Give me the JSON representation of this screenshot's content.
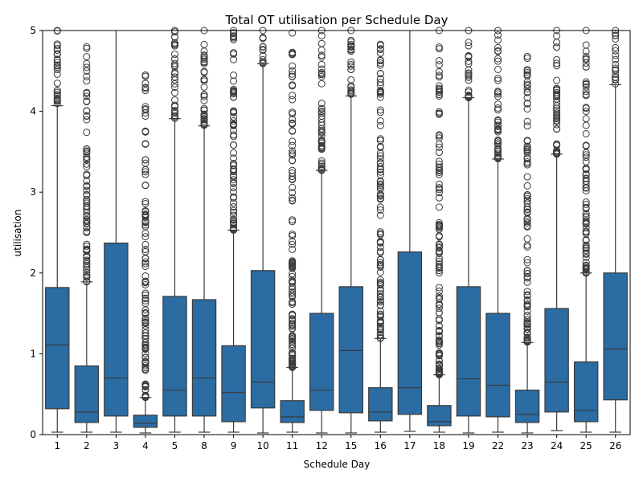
{
  "chart_data": {
    "type": "box",
    "title": "Total OT utilisation per Schedule Day",
    "xlabel": "Schedule Day",
    "ylabel": "utilisation",
    "ylim": [
      0,
      5
    ],
    "yticks": [
      0,
      1,
      2,
      3,
      4,
      5
    ],
    "grid": false,
    "box_color": "#2b6ca3",
    "line_color": "#3a3a3a",
    "categories": [
      "1",
      "2",
      "3",
      "4",
      "5",
      "8",
      "9",
      "10",
      "11",
      "12",
      "15",
      "16",
      "17",
      "18",
      "19",
      "22",
      "23",
      "24",
      "25",
      "26"
    ],
    "boxes": [
      {
        "category": "1",
        "whislo": 0.03,
        "q1": 0.32,
        "med": 1.11,
        "q3": 1.82,
        "whishi": 4.07,
        "fliers_range": [
          4.07,
          5.0
        ]
      },
      {
        "category": "2",
        "whislo": 0.03,
        "q1": 0.15,
        "med": 0.28,
        "q3": 0.85,
        "whishi": 1.89,
        "fliers_range": [
          1.89,
          4.8
        ]
      },
      {
        "category": "3",
        "whislo": 0.03,
        "q1": 0.23,
        "med": 0.7,
        "q3": 2.37,
        "whishi": 5.0,
        "fliers_range": null
      },
      {
        "category": "4",
        "whislo": 0.02,
        "q1": 0.09,
        "med": 0.14,
        "q3": 0.24,
        "whishi": 0.46,
        "fliers_range": [
          0.46,
          4.45
        ]
      },
      {
        "category": "5",
        "whislo": 0.03,
        "q1": 0.23,
        "med": 0.55,
        "q3": 1.71,
        "whishi": 3.91,
        "fliers_range": [
          3.91,
          5.0
        ]
      },
      {
        "category": "8",
        "whislo": 0.03,
        "q1": 0.23,
        "med": 0.7,
        "q3": 1.67,
        "whishi": 3.82,
        "fliers_range": [
          3.82,
          5.0
        ]
      },
      {
        "category": "9",
        "whislo": 0.03,
        "q1": 0.16,
        "med": 0.52,
        "q3": 1.1,
        "whishi": 2.53,
        "fliers_range": [
          2.53,
          5.0
        ]
      },
      {
        "category": "10",
        "whislo": 0.02,
        "q1": 0.33,
        "med": 0.65,
        "q3": 2.03,
        "whishi": 4.59,
        "fliers_range": [
          4.59,
          5.0
        ]
      },
      {
        "category": "11",
        "whislo": 0.03,
        "q1": 0.15,
        "med": 0.22,
        "q3": 0.42,
        "whishi": 0.83,
        "fliers_range": [
          0.83,
          4.97
        ]
      },
      {
        "category": "12",
        "whislo": 0.02,
        "q1": 0.3,
        "med": 0.55,
        "q3": 1.5,
        "whishi": 3.27,
        "fliers_range": [
          3.27,
          5.0
        ]
      },
      {
        "category": "15",
        "whislo": 0.02,
        "q1": 0.27,
        "med": 1.04,
        "q3": 1.83,
        "whishi": 4.19,
        "fliers_range": [
          4.19,
          5.0
        ]
      },
      {
        "category": "16",
        "whislo": 0.03,
        "q1": 0.17,
        "med": 0.28,
        "q3": 0.58,
        "whishi": 1.19,
        "fliers_range": [
          1.19,
          4.83
        ]
      },
      {
        "category": "17",
        "whislo": 0.04,
        "q1": 0.25,
        "med": 0.58,
        "q3": 2.26,
        "whishi": 5.0,
        "fliers_range": null
      },
      {
        "category": "18",
        "whislo": 0.03,
        "q1": 0.11,
        "med": 0.16,
        "q3": 0.36,
        "whishi": 0.74,
        "fliers_range": [
          0.74,
          5.0
        ]
      },
      {
        "category": "19",
        "whislo": 0.02,
        "q1": 0.23,
        "med": 0.69,
        "q3": 1.83,
        "whishi": 4.17,
        "fliers_range": [
          4.17,
          5.0
        ]
      },
      {
        "category": "22",
        "whislo": 0.03,
        "q1": 0.22,
        "med": 0.61,
        "q3": 1.5,
        "whishi": 3.41,
        "fliers_range": [
          3.41,
          5.0
        ]
      },
      {
        "category": "23",
        "whislo": 0.02,
        "q1": 0.15,
        "med": 0.25,
        "q3": 0.55,
        "whishi": 1.14,
        "fliers_range": [
          1.14,
          4.68
        ]
      },
      {
        "category": "24",
        "whislo": 0.05,
        "q1": 0.28,
        "med": 0.65,
        "q3": 1.56,
        "whishi": 3.47,
        "fliers_range": [
          3.47,
          5.0
        ]
      },
      {
        "category": "25",
        "whislo": 0.03,
        "q1": 0.16,
        "med": 0.3,
        "q3": 0.9,
        "whishi": 2.0,
        "fliers_range": [
          2.0,
          5.0
        ]
      },
      {
        "category": "26",
        "whislo": 0.03,
        "q1": 0.43,
        "med": 1.06,
        "q3": 2.0,
        "whishi": 4.33,
        "fliers_range": [
          4.33,
          5.0
        ]
      }
    ]
  }
}
